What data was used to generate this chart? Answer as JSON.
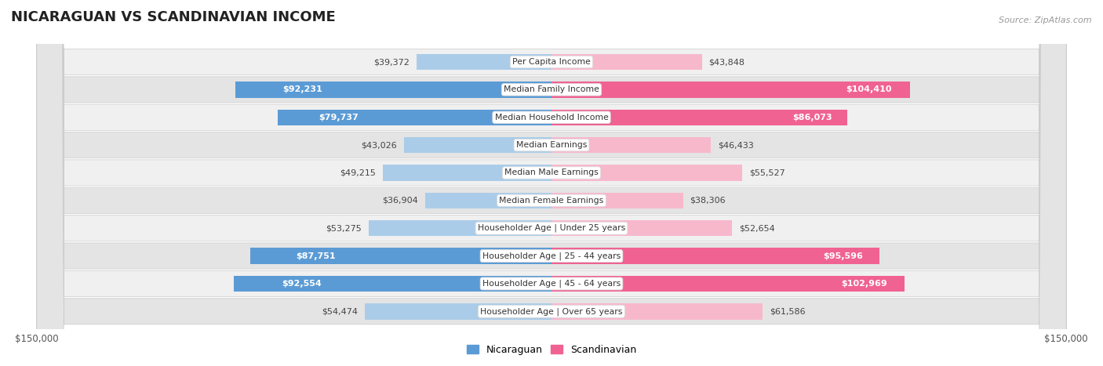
{
  "title": "NICARAGUAN VS SCANDINAVIAN INCOME",
  "source": "Source: ZipAtlas.com",
  "categories": [
    "Per Capita Income",
    "Median Family Income",
    "Median Household Income",
    "Median Earnings",
    "Median Male Earnings",
    "Median Female Earnings",
    "Householder Age | Under 25 years",
    "Householder Age | 25 - 44 years",
    "Householder Age | 45 - 64 years",
    "Householder Age | Over 65 years"
  ],
  "nicaraguan_values": [
    39372,
    92231,
    79737,
    43026,
    49215,
    36904,
    53275,
    87751,
    92554,
    54474
  ],
  "scandinavian_values": [
    43848,
    104410,
    86073,
    46433,
    55527,
    38306,
    52654,
    95596,
    102969,
    61586
  ],
  "max_value": 150000,
  "blue_light": "#aacce8",
  "blue_dark": "#5b9bd5",
  "pink_light": "#f7b8cc",
  "pink_dark": "#f06292",
  "row_bg_odd": "#f0f0f0",
  "row_bg_even": "#e4e4e4",
  "threshold": 65000,
  "legend_blue": "Nicaraguan",
  "legend_pink": "Scandinavian"
}
